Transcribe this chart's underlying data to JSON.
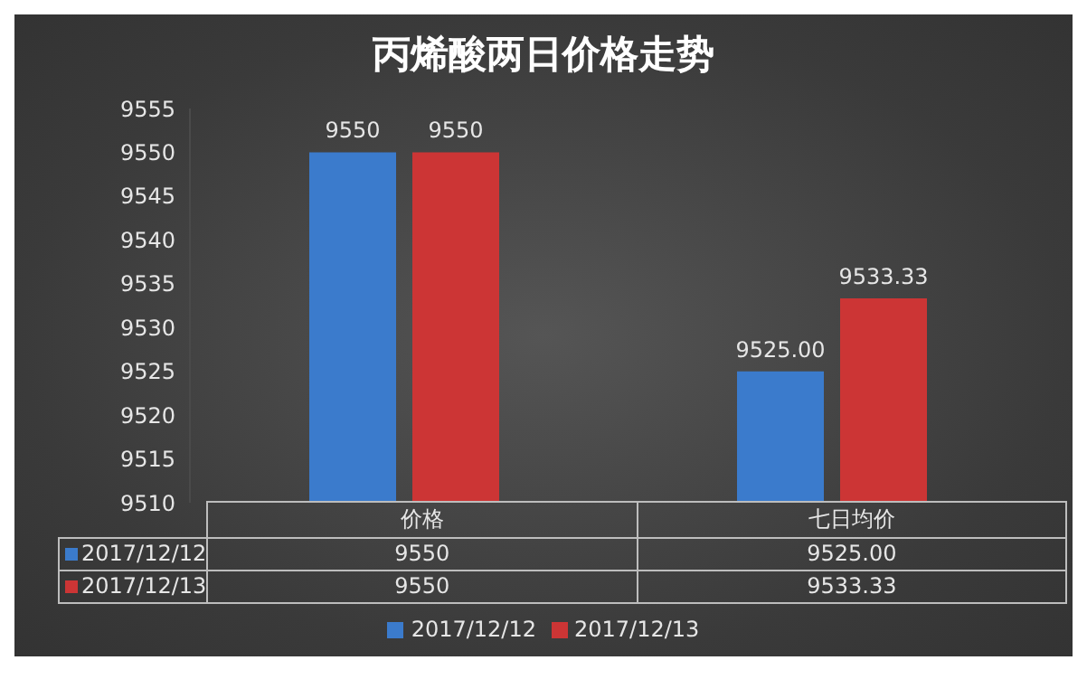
{
  "chart_data": {
    "type": "bar",
    "title": "丙烯酸两日价格走势",
    "categories": [
      "价格",
      "七日均价"
    ],
    "series": [
      {
        "name": "2017/12/12",
        "color": "#3b7bcc",
        "values": [
          9550,
          9525
        ],
        "value_labels": [
          "9550",
          "9525.00"
        ]
      },
      {
        "name": "2017/12/13",
        "color": "#cc3535",
        "values": [
          9550,
          9533.33
        ],
        "value_labels": [
          "9550",
          "9533.33"
        ]
      }
    ],
    "ylim": [
      9510,
      9555
    ],
    "yticks": [
      9510,
      9515,
      9520,
      9525,
      9530,
      9535,
      9540,
      9545,
      9550,
      9555
    ],
    "grid": false,
    "legend": "bottom"
  }
}
